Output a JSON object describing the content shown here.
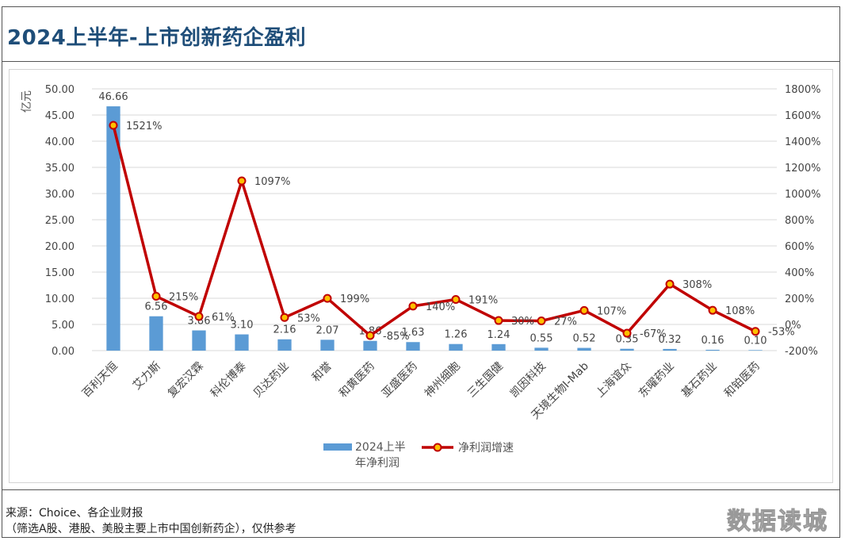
{
  "header": {
    "title": "2024上半年-上市创新药企盈利"
  },
  "footer": {
    "source": "来源：Choice、各企业财报",
    "note": "（筛选A股、港股、美股主要上市中国创新药企），仅供参考",
    "watermark": "数据读城"
  },
  "chart_data": {
    "type": "bar",
    "title": "",
    "categories": [
      "百利天恒",
      "艾力斯",
      "复宏汉霖",
      "科伦博泰",
      "贝达药业",
      "和誉",
      "和黄医药",
      "亚盛医药",
      "神州细胞",
      "三生国健",
      "凯因科技",
      "天境生物I-Mab",
      "上海谊众",
      "东曜药业",
      "基石药业",
      "和铂医药"
    ],
    "ylabel": "亿元",
    "ylim": [
      0,
      50
    ],
    "y_ticks": [
      "0.00",
      "5.00",
      "10.00",
      "15.00",
      "20.00",
      "25.00",
      "30.00",
      "35.00",
      "40.00",
      "45.00",
      "50.00"
    ],
    "y2lim": [
      -200,
      1800
    ],
    "y2_ticks": [
      "-200%",
      "0%",
      "200%",
      "400%",
      "600%",
      "800%",
      "1000%",
      "1200%",
      "1400%",
      "1600%",
      "1800%"
    ],
    "grid": true,
    "legend_position": "bottom",
    "series": [
      {
        "name": "2024上半年净利润",
        "type": "bar",
        "axis": "left",
        "color": "#5b9bd5",
        "values": [
          46.66,
          6.56,
          3.86,
          3.1,
          2.16,
          2.07,
          1.86,
          1.63,
          1.26,
          1.24,
          0.55,
          0.52,
          0.35,
          0.32,
          0.16,
          0.1
        ],
        "labels": [
          "46.66",
          "6.56",
          "3.86",
          "3.10",
          "2.16",
          "2.07",
          "1.86",
          "1.63",
          "1.26",
          "1.24",
          "0.55",
          "0.52",
          "0.35",
          "0.32",
          "0.16",
          "0.10"
        ]
      },
      {
        "name": "净利润增速",
        "type": "line",
        "axis": "right",
        "color": "#c00000",
        "marker_color": "#ffc000",
        "values": [
          1521,
          215,
          61,
          1097,
          53,
          199,
          -85,
          140,
          191,
          30,
          27,
          107,
          -67,
          308,
          108,
          -53
        ],
        "labels": [
          "1521%",
          "215%",
          "61%",
          "1097%",
          "53%",
          "199%",
          "-85%",
          "140%",
          "191%",
          "30%",
          "27%",
          "107%",
          "-67%",
          "308%",
          "108%",
          "-53%"
        ]
      }
    ]
  }
}
